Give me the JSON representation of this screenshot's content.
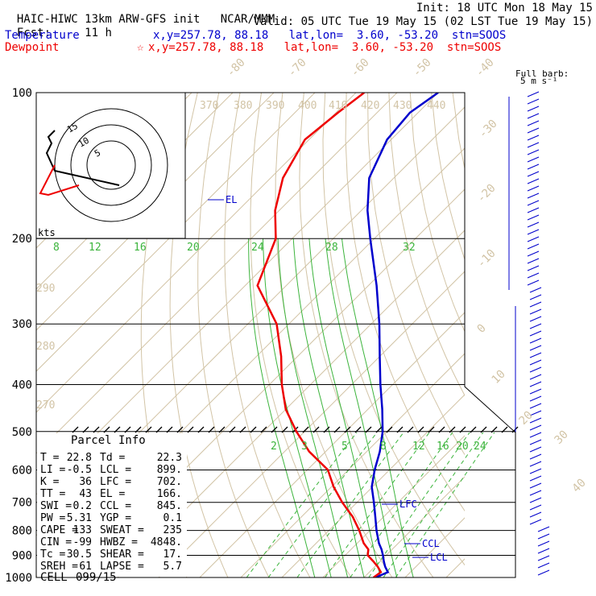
{
  "header": {
    "model_line": "HAIC-HIWC 13km ARW-GFS init",
    "org": "NCAR/MMM",
    "init": "Init: 18 UTC Mon 18 May 15",
    "fcst_label": "Fcst:",
    "fcst_value": "11 h",
    "valid": "Valid: 05 UTC Tue 19 May 15 (02 LST Tue 19 May 15)",
    "temp_label": "Temperature",
    "temp_loc": "x,y=257.78, 88.18   lat,lon=  3.60, -53.20  stn=SOOS",
    "dew_label": "Dewpoint",
    "dew_loc": "x,y=257.78, 88.18   lat,lon=  3.60, -53.20  stn=SOOS",
    "dew_marker": "☆",
    "temp_color": "#0000cc",
    "dew_color": "#ee0000"
  },
  "barb_legend": {
    "title": "Full barb:",
    "value": "5 m s⁻¹"
  },
  "parcel_info": {
    "title": "Parcel Info",
    "rows": [
      {
        "l1": "T",
        "v1": "22.8",
        "l2": "Td",
        "v2": "22.3"
      },
      {
        "l1": "LI",
        "v1": "-0.5",
        "l2": "LCL",
        "v2": "899."
      },
      {
        "l1": "K",
        "v1": "36",
        "l2": "LFC",
        "v2": "702."
      },
      {
        "l1": "TT",
        "v1": "43",
        "l2": "EL",
        "v2": "166."
      },
      {
        "l1": "SWI",
        "v1": "0.2",
        "l2": "CCL",
        "v2": "845."
      },
      {
        "l1": "PW",
        "v1": "5.31",
        "l2": "YGP",
        "v2": "0.1"
      },
      {
        "l1": "CAPE",
        "v1": "133",
        "l2": "SWEAT",
        "v2": "235"
      },
      {
        "l1": "CIN",
        "v1": "-99",
        "l2": "HWBZ",
        "v2": "4848."
      },
      {
        "l1": "Tc",
        "v1": "30.5",
        "l2": "SHEAR",
        "v2": "17."
      },
      {
        "l1": "SREH",
        "v1": "61",
        "l2": "LAPSE",
        "v2": "5.7"
      }
    ],
    "cell_label": "CELL",
    "cell_value": "099/15"
  },
  "hodograph": {
    "rings": [
      "5",
      "10",
      "15"
    ],
    "unit": "kts"
  },
  "chart_data": {
    "type": "line",
    "title": "",
    "pressure_levels": [
      "100",
      "200",
      "300",
      "400",
      "500",
      "600",
      "700",
      "800",
      "900",
      "1000"
    ],
    "isotherm_labels": [
      "-80",
      "-70",
      "-60",
      "-50",
      "-40",
      "-30",
      "-20",
      "-10",
      "0",
      "10",
      "20",
      "30",
      "40"
    ],
    "dry_adiabat_labels": [
      "370",
      "380",
      "390",
      "400",
      "410",
      "420",
      "430",
      "440",
      "290",
      "280",
      "270"
    ],
    "mixing_ratio_labels_top": [
      "8",
      "12",
      "16",
      "20",
      "24",
      "28",
      "32"
    ],
    "mixing_ratio_labels_low": [
      "2",
      "3",
      "5",
      "8",
      "12",
      "16",
      "20",
      "24"
    ],
    "level_markers": [
      "EL",
      "LFC",
      "CCL",
      "LCL"
    ],
    "series": [
      {
        "name": "Temperature",
        "color": "#0000cc",
        "p": [
          1000,
          975,
          950,
          925,
          900,
          875,
          850,
          800,
          750,
          700,
          650,
          600,
          550,
          500,
          450,
          400,
          350,
          300,
          250,
          200,
          175,
          150,
          125,
          110,
          100
        ],
        "t": [
          22.8,
          24.5,
          22.5,
          20.8,
          19.2,
          17.4,
          15.3,
          11.6,
          8.0,
          4.1,
          -0.2,
          -3.6,
          -6.8,
          -11.0,
          -16.5,
          -23.0,
          -30.0,
          -38.0,
          -48.0,
          -61.0,
          -68.5,
          -76.0,
          -81.0,
          -82.0,
          -80.0
        ]
      },
      {
        "name": "Dewpoint",
        "color": "#ee0000",
        "p": [
          1000,
          975,
          950,
          925,
          900,
          875,
          850,
          800,
          750,
          700,
          650,
          600,
          550,
          500,
          450,
          400,
          350,
          300,
          250,
          200,
          175,
          150,
          125,
          110,
          100
        ],
        "t": [
          22.3,
          22.8,
          20.7,
          18.2,
          15.5,
          14.2,
          11.6,
          7.4,
          2.5,
          -3.6,
          -9.5,
          -15.0,
          -24.0,
          -32.0,
          -40.0,
          -47.0,
          -54.0,
          -63.0,
          -77.0,
          -84.0,
          -91.0,
          -97.0,
          -101.0,
          -99.5,
          -98.0
        ]
      }
    ]
  }
}
